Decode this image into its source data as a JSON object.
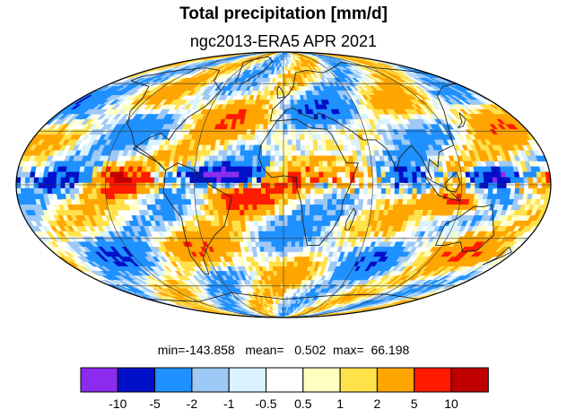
{
  "header": {
    "title": "Total precipitation [mm/d]",
    "subtitle": "ngc2013-ERA5 APR 2021"
  },
  "stats": {
    "line": "min=-143.858   mean=   0.502  max=  66.198"
  },
  "colorbar": {
    "colors": [
      "#8c2bf0",
      "#0010c8",
      "#1e90ff",
      "#9ec8f5",
      "#d8f2ff",
      "#ffffff",
      "#ffffc0",
      "#ffe14a",
      "#ffa500",
      "#ff1a00",
      "#c00000"
    ],
    "labels": [
      "-10",
      "-5",
      "-2",
      "-1",
      "-0.5",
      "0.5",
      "1",
      "2",
      "5",
      "10"
    ]
  },
  "map": {
    "projection": "Mollweide",
    "palette": [
      "#8c2bf0",
      "#0010c8",
      "#1e90ff",
      "#9ec8f5",
      "#d8f2ff",
      "#ffffff",
      "#ffffc0",
      "#ffe14a",
      "#ffa500",
      "#ff1a00",
      "#c00000"
    ]
  }
}
